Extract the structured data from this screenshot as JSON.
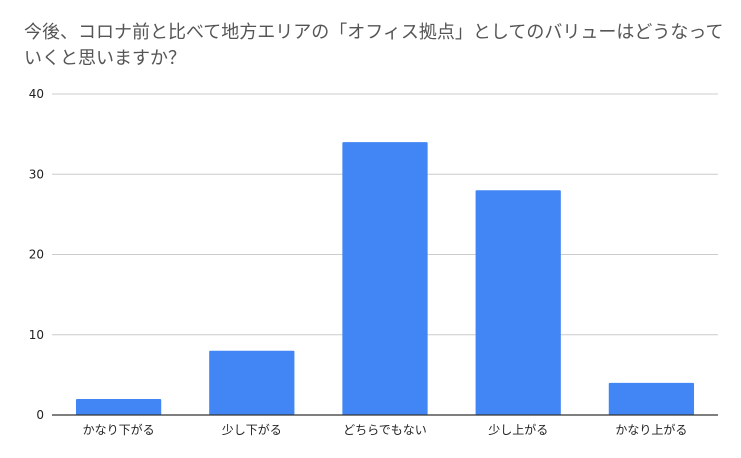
{
  "chart_data": {
    "type": "bar",
    "title": "今後、コロナ前と比べて地方エリアの「オフィス拠点」としてのバリューはどうなっていくと思いますか？",
    "categories": [
      "かなり下がる",
      "少し下がる",
      "どちらでもない",
      "少し上がる",
      "かなり上がる"
    ],
    "series": [
      {
        "values": [
          2,
          8,
          34,
          28,
          4
        ]
      }
    ],
    "ylim": [
      0,
      40
    ],
    "yticks": [
      0,
      10,
      20,
      30,
      40
    ],
    "grid": true,
    "legend": "none",
    "colors": {
      "bar": "#4285f4",
      "grid": "#cccccc",
      "axis": "#333333"
    }
  }
}
